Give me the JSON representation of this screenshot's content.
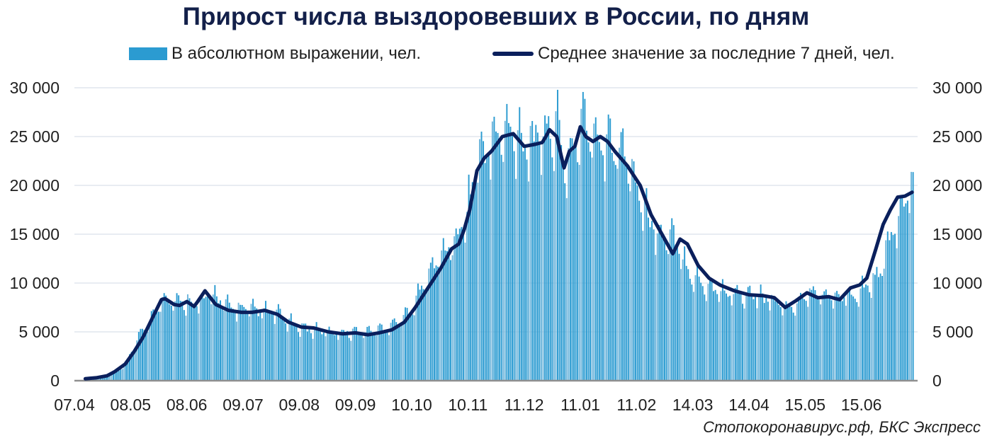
{
  "chart_data": {
    "type": "bar",
    "title": "Прирост числа выздоровевших в России, по дням",
    "source": "Стопокоронавирус.рф, БКС Экспресс",
    "ylim": [
      0,
      30000
    ],
    "y_ticks": [
      "0",
      "5 000",
      "10 000",
      "15 000",
      "20 000",
      "25 000",
      "30 000"
    ],
    "y_tick_values": [
      0,
      5000,
      10000,
      15000,
      20000,
      25000,
      30000
    ],
    "x_ticks": [
      "07.04",
      "08.05",
      "08.06",
      "09.07",
      "09.08",
      "09.09",
      "10.10",
      "10.11",
      "11.12",
      "11.01",
      "11.02",
      "14.03",
      "14.04",
      "15.05",
      "15.06"
    ],
    "x_tick_days": [
      0,
      31,
      62,
      93,
      124,
      155,
      186,
      217,
      248,
      279,
      310,
      341,
      372,
      403,
      434
    ],
    "grid": true,
    "legend_position": "top",
    "dual_axis": true,
    "bar_color": "#2b9bd1",
    "line_color": "#0a1f5c",
    "series": [
      {
        "name": "В абсолютном выражении, чел.",
        "type": "bar",
        "anchor_days": [
          0,
          10,
          18,
          24,
          28,
          35,
          44,
          48,
          50,
          58,
          62,
          70,
          75,
          85,
          95,
          110,
          120,
          130,
          145,
          160,
          170,
          178,
          184,
          190,
          198,
          205,
          212,
          218,
          222,
          226,
          232,
          240,
          250,
          258,
          265,
          270,
          275,
          280,
          288,
          295,
          302,
          308,
          315,
          322,
          330,
          338,
          345,
          352,
          360,
          375,
          385,
          395,
          400,
          405,
          410,
          420,
          430,
          438,
          442,
          448,
          455,
          460,
          462
        ],
        "anchor_values": [
          0,
          200,
          500,
          1000,
          1800,
          4500,
          7000,
          8600,
          8500,
          8000,
          8200,
          7800,
          9000,
          7500,
          7300,
          7000,
          5800,
          5200,
          5000,
          5000,
          5400,
          6000,
          7000,
          9000,
          12000,
          13500,
          15000,
          19000,
          23000,
          23500,
          25000,
          25500,
          24500,
          25000,
          26500,
          22000,
          24000,
          26500,
          24800,
          25000,
          23500,
          21000,
          17000,
          15000,
          14500,
          11500,
          10000,
          9500,
          9000,
          8800,
          8000,
          7500,
          8200,
          9000,
          8800,
          8500,
          9000,
          10000,
          10500,
          14000,
          17000,
          19500,
          19500
        ]
      },
      {
        "name": "Среднее значение за последние 7 дней, чел.",
        "type": "line",
        "anchor_days": [
          6,
          12,
          18,
          22,
          28,
          33,
          38,
          44,
          48,
          50,
          55,
          58,
          62,
          66,
          68,
          72,
          75,
          78,
          85,
          92,
          98,
          105,
          112,
          118,
          125,
          132,
          140,
          148,
          155,
          162,
          168,
          175,
          182,
          188,
          195,
          202,
          208,
          212,
          215,
          218,
          222,
          226,
          230,
          236,
          242,
          248,
          254,
          258,
          260,
          262,
          266,
          270,
          273,
          276,
          279,
          282,
          286,
          290,
          294,
          298,
          305,
          312,
          318,
          324,
          330,
          334,
          338,
          344,
          350,
          356,
          364,
          372,
          380,
          386,
          392,
          398,
          404,
          410,
          416,
          422,
          428,
          433,
          437,
          442,
          446,
          450,
          454,
          458,
          462
        ],
        "anchor_values": [
          200,
          300,
          500,
          900,
          1700,
          3000,
          4500,
          6800,
          8300,
          8400,
          7800,
          7700,
          8100,
          7600,
          8100,
          9200,
          8500,
          7800,
          7200,
          7000,
          7000,
          7200,
          6800,
          6000,
          5500,
          5400,
          5000,
          4800,
          4900,
          4700,
          4900,
          5200,
          6000,
          7500,
          9500,
          11500,
          13500,
          14000,
          15500,
          17500,
          21500,
          22800,
          23500,
          25000,
          25300,
          24000,
          24200,
          24400,
          25000,
          25700,
          25000,
          21800,
          23500,
          24000,
          26000,
          25000,
          24500,
          25000,
          24500,
          23500,
          22000,
          20000,
          17000,
          15000,
          13000,
          14500,
          14000,
          11800,
          10500,
          9800,
          9200,
          8800,
          8700,
          8500,
          7500,
          8200,
          9000,
          8500,
          8600,
          8300,
          9500,
          9800,
          10500,
          13500,
          16000,
          17500,
          18800,
          18900,
          19300
        ]
      }
    ]
  }
}
